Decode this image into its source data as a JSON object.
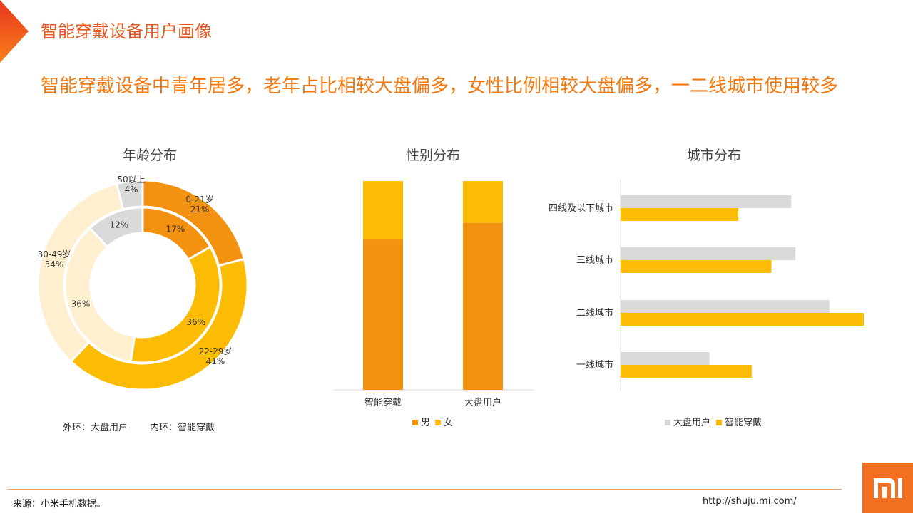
{
  "page": {
    "title": "智能穿戴设备用户画像",
    "headline": "智能穿戴设备中青年居多，老年占比相较大盘偏多，女性比例相较大盘偏多，一二线城市使用较多",
    "source": "来源：小米手机数据。",
    "url": "http://shuju.mi.com/",
    "logo_text": "MI"
  },
  "colors": {
    "accent_red": "#e8561f",
    "accent_orange": "#f2780f",
    "dark_orange": "#f39110",
    "yellow": "#fcbc03",
    "pale_cream": "#fdefcf",
    "light_gray": "#d9d9d9",
    "logo_bg": "#f36f21"
  },
  "chart_data": [
    {
      "type": "pie",
      "variant": "double-donut",
      "title": "年龄分布",
      "categories": [
        "0-21岁",
        "22-29岁",
        "30-49岁",
        "50以上"
      ],
      "series": [
        {
          "ring": "outer",
          "values": [
            21,
            41,
            34,
            4
          ]
        },
        {
          "ring": "inner",
          "values": [
            17,
            36,
            36,
            12
          ]
        }
      ],
      "labels_outer": [
        "21%",
        "41%",
        "34%",
        "4%"
      ],
      "labels_inner": [
        "17%",
        "36%",
        "36%",
        "12%"
      ],
      "notes": [
        "外环：大盘用户",
        "内环：智能穿戴"
      ]
    },
    {
      "type": "bar",
      "variant": "stacked-100",
      "title": "性别分布",
      "categories": [
        "智能穿戴",
        "大盘用户"
      ],
      "series": [
        {
          "name": "男",
          "values": [
            72,
            80
          ]
        },
        {
          "name": "女",
          "values": [
            28,
            20
          ]
        }
      ],
      "ylim": [
        0,
        100
      ],
      "legend": "bottom"
    },
    {
      "type": "bar",
      "variant": "horizontal-grouped",
      "title": "城市分布",
      "categories": [
        "四线及以下城市",
        "三线城市",
        "二线城市",
        "一线城市"
      ],
      "series": [
        {
          "name": "大盘用户",
          "values": [
            24.2,
            24.8,
            29.6,
            12.6
          ]
        },
        {
          "name": "智能穿戴",
          "values": [
            16.7,
            21.4,
            34.5,
            18.6
          ]
        }
      ],
      "xlim": [
        0,
        35
      ],
      "legend": "bottom"
    }
  ]
}
